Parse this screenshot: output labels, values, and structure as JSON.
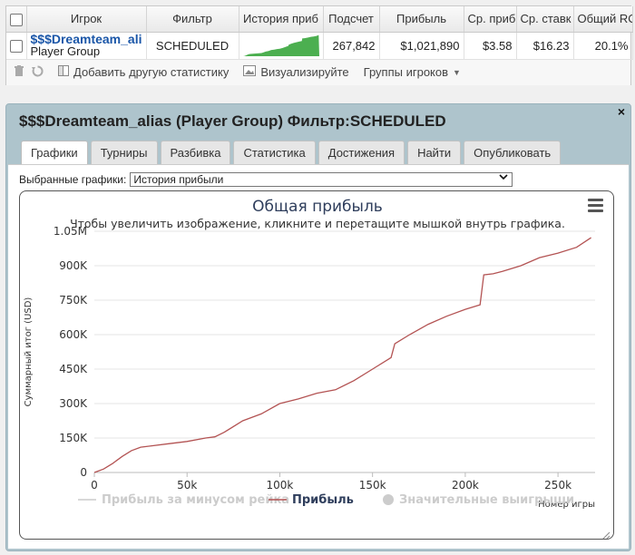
{
  "grid": {
    "headers": {
      "player": "Игрок",
      "filter": "Фильтр",
      "history": "История приб",
      "count": "Подсчет",
      "profit": "Прибыль",
      "avg_profit": "Ср. приб",
      "avg_stake": "Ср. ставк",
      "roi": "Общий RO"
    },
    "row": {
      "name": "$$$Dreamteam_ali",
      "group": "Player Group",
      "filter": "SCHEDULED",
      "count": "267,842",
      "profit": "$1,021,890",
      "avg_profit": "$3.58",
      "avg_stake": "$16.23",
      "roi": "20.1%"
    },
    "toolbar": {
      "add_stat": "Добавить другую статистику",
      "visualize": "Визуализируйте",
      "player_groups": "Группы игроков"
    }
  },
  "panel": {
    "title": "$$$Dreamteam_alias (Player Group) Фильтр:SCHEDULED",
    "close": "×",
    "tabs": [
      "Графики",
      "Турниры",
      "Разбивка",
      "Статистика",
      "Достижения",
      "Найти",
      "Опубликовать"
    ],
    "active_tab": "Графики",
    "selected_label": "Выбранные графики:",
    "selected_value": "История прибыли"
  },
  "colors": {
    "line": "#b35353",
    "sparkline": "#4caf50",
    "title": "#2f3e5c"
  },
  "chart_data": {
    "type": "line",
    "title": "Общая прибыль",
    "subtitle": "Чтобы увеличить изображение, кликните и перетащите мышкой внутрь графика.",
    "xlabel": "Номер игры",
    "ylabel": "Суммарный итог (USD)",
    "xlim": [
      0,
      270000
    ],
    "ylim": [
      0,
      1050000
    ],
    "x_ticks": [
      "0",
      "50k",
      "100k",
      "150k",
      "200k",
      "250k"
    ],
    "x_tick_values": [
      0,
      50000,
      100000,
      150000,
      200000,
      250000
    ],
    "y_ticks": [
      "0",
      "150K",
      "300K",
      "450K",
      "600K",
      "750K",
      "900K",
      "1.05M"
    ],
    "y_tick_values": [
      0,
      150000,
      300000,
      450000,
      600000,
      750000,
      900000,
      1050000
    ],
    "legend": [
      "Прибыль за минусом рейка",
      "Прибыль",
      "Значительные выигрыши"
    ],
    "legend_active": [
      false,
      true,
      false
    ],
    "series": [
      {
        "name": "Прибыль",
        "x": [
          0,
          5000,
          10000,
          15000,
          20000,
          25000,
          30000,
          40000,
          50000,
          60000,
          65000,
          70000,
          80000,
          90000,
          100000,
          110000,
          120000,
          130000,
          140000,
          150000,
          160000,
          162000,
          170000,
          180000,
          190000,
          200000,
          208000,
          210000,
          215000,
          220000,
          230000,
          240000,
          250000,
          260000,
          267842
        ],
        "y": [
          0,
          15000,
          40000,
          70000,
          95000,
          110000,
          115000,
          125000,
          135000,
          150000,
          155000,
          175000,
          225000,
          255000,
          300000,
          320000,
          345000,
          360000,
          400000,
          450000,
          500000,
          560000,
          600000,
          645000,
          680000,
          710000,
          730000,
          860000,
          865000,
          875000,
          900000,
          935000,
          955000,
          980000,
          1021890
        ]
      }
    ]
  }
}
